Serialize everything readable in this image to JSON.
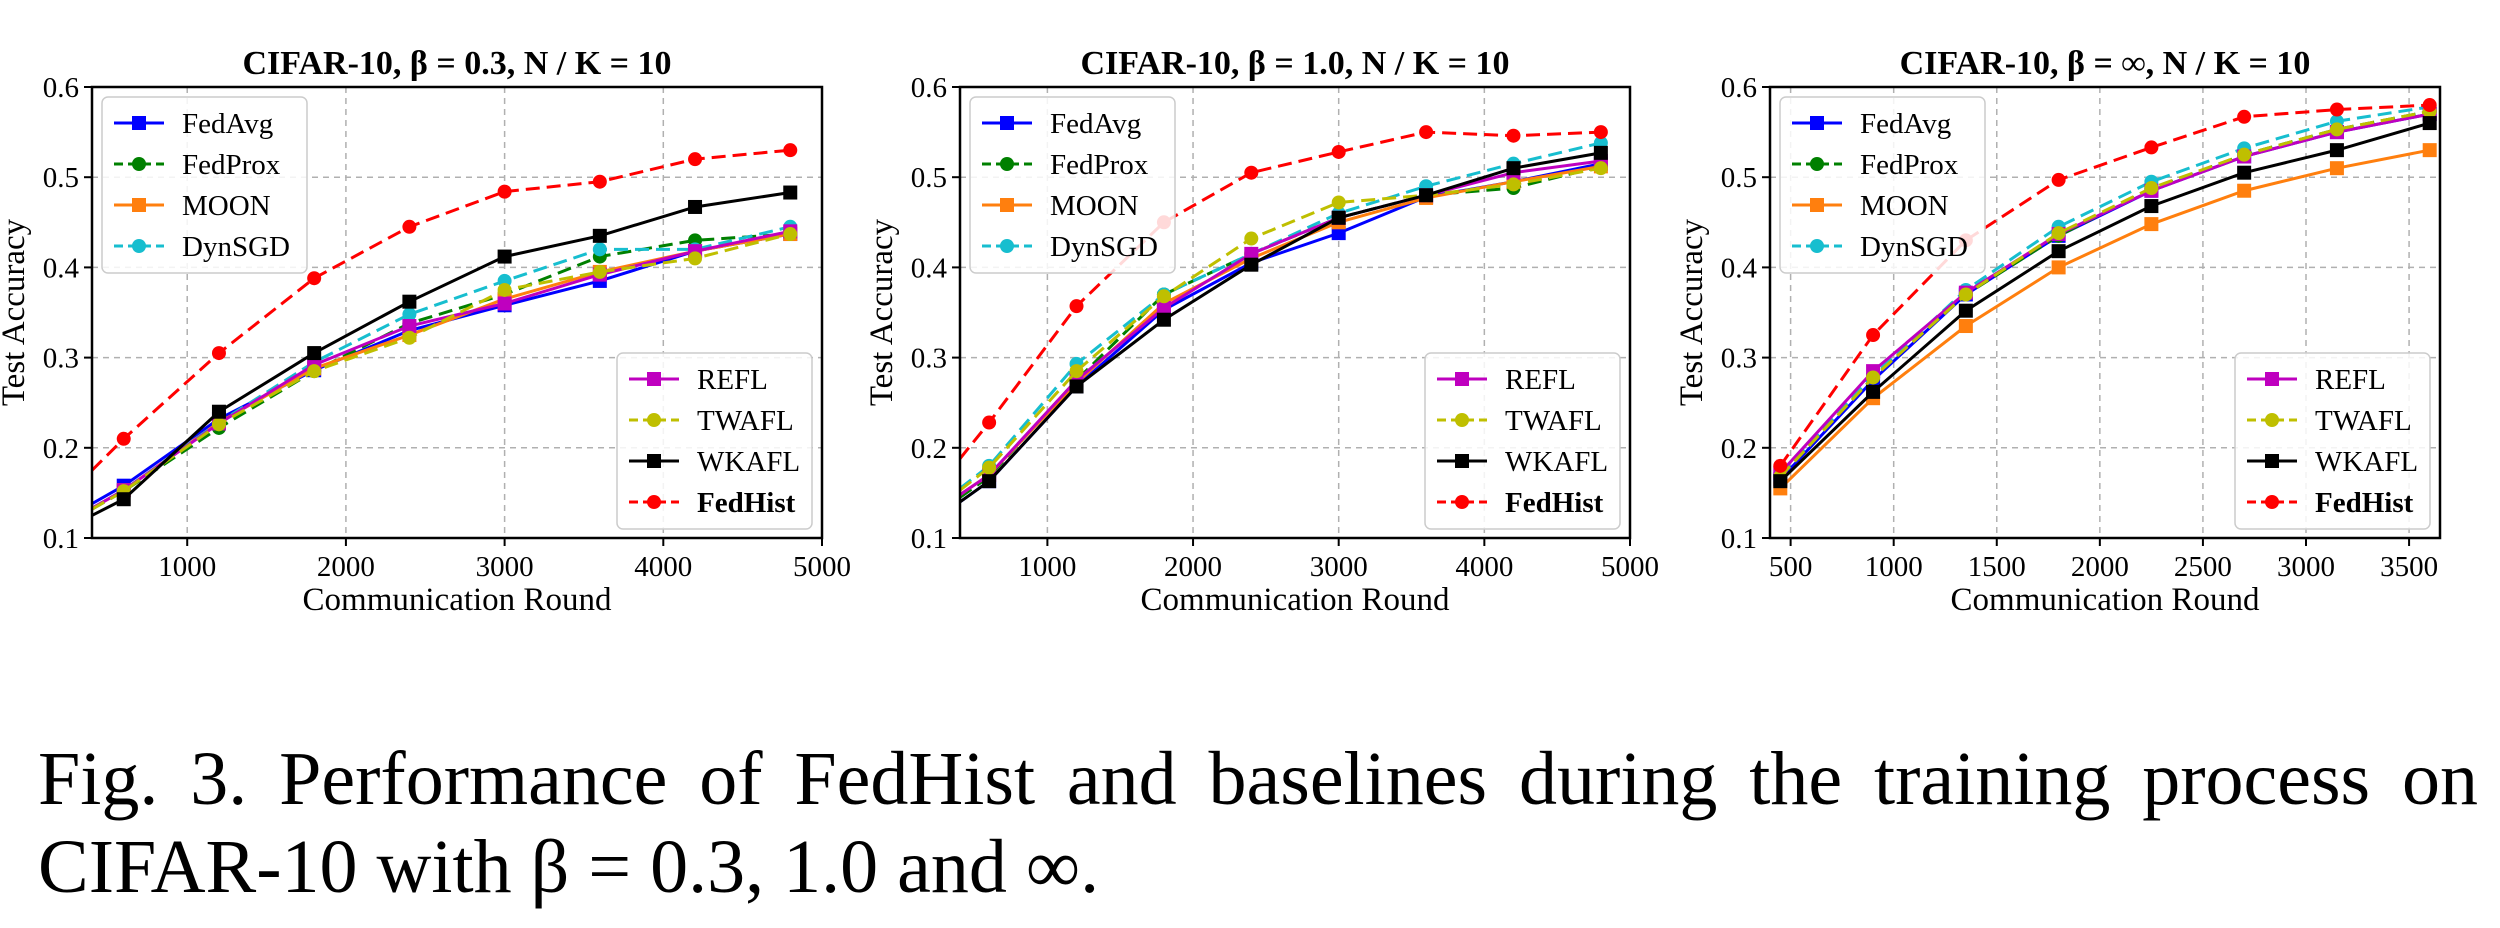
{
  "chart_data": [
    {
      "type": "line",
      "title": "CIFAR-10,  β = 0.3,  N / K = 10",
      "xlabel": "Communication Round",
      "ylabel": "Test Accuracy",
      "xlim": [
        400,
        5000
      ],
      "ylim": [
        0.1,
        0.6
      ],
      "xticks": [
        1000,
        2000,
        3000,
        4000,
        5000
      ],
      "yticks": [
        0.1,
        0.2,
        0.3,
        0.4,
        0.5,
        0.6
      ],
      "grid": true,
      "legend": [
        "upper-left",
        "lower-right"
      ],
      "x": [
        600,
        1200,
        1800,
        2400,
        3000,
        3600,
        4200,
        4800
      ],
      "series": [
        {
          "name": "FedAvg",
          "color": "#0000ff",
          "dash": "solid",
          "marker": "square",
          "values": [
            0.158,
            0.232,
            0.286,
            0.33,
            0.358,
            0.385,
            0.418,
            0.437
          ],
          "left": [
            400,
            0.138
          ]
        },
        {
          "name": "FedProx",
          "color": "#008000",
          "dash": "dashed",
          "marker": "circle",
          "values": [
            0.152,
            0.222,
            0.285,
            0.338,
            0.37,
            0.412,
            0.43,
            0.437
          ],
          "left": [
            400,
            0.132
          ]
        },
        {
          "name": "MOON",
          "color": "#ff7f0e",
          "dash": "solid",
          "marker": "square",
          "values": [
            0.153,
            0.228,
            0.288,
            0.325,
            0.365,
            0.395,
            0.418,
            0.437
          ],
          "left": [
            400,
            0.133
          ]
        },
        {
          "name": "DynSGD",
          "color": "#17becf",
          "dash": "dashed",
          "marker": "circle",
          "values": [
            0.153,
            0.228,
            0.295,
            0.348,
            0.385,
            0.42,
            0.42,
            0.445
          ],
          "left": [
            400,
            0.133
          ]
        },
        {
          "name": "REFL",
          "color": "#bf00bf",
          "dash": "solid",
          "marker": "square",
          "values": [
            0.153,
            0.227,
            0.292,
            0.335,
            0.36,
            0.392,
            0.418,
            0.44
          ],
          "left": [
            400,
            0.133
          ]
        },
        {
          "name": "TWAFL",
          "color": "#bfbf00",
          "dash": "dashed",
          "marker": "circle",
          "values": [
            0.152,
            0.226,
            0.285,
            0.322,
            0.375,
            0.395,
            0.41,
            0.437
          ],
          "left": [
            400,
            0.132
          ]
        },
        {
          "name": "WKAFL",
          "color": "#000000",
          "dash": "solid",
          "marker": "square",
          "values": [
            0.143,
            0.24,
            0.305,
            0.362,
            0.412,
            0.435,
            0.467,
            0.483
          ],
          "left": [
            400,
            0.125
          ]
        },
        {
          "name": "FedHist",
          "color": "#ff0000",
          "dash": "dashed",
          "marker": "circle",
          "values": [
            0.21,
            0.305,
            0.388,
            0.445,
            0.484,
            0.495,
            0.52,
            0.53
          ],
          "left": [
            400,
            0.175
          ]
        }
      ]
    },
    {
      "type": "line",
      "title": "CIFAR-10,  β = 1.0,  N / K = 10",
      "xlabel": "Communication Round",
      "ylabel": "Test Accuracy",
      "xlim": [
        400,
        5000
      ],
      "ylim": [
        0.1,
        0.6
      ],
      "xticks": [
        1000,
        2000,
        3000,
        4000,
        5000
      ],
      "yticks": [
        0.1,
        0.2,
        0.3,
        0.4,
        0.5,
        0.6
      ],
      "grid": true,
      "legend": [
        "upper-left",
        "lower-right"
      ],
      "x": [
        600,
        1200,
        1800,
        2400,
        3000,
        3600,
        4200,
        4800
      ],
      "series": [
        {
          "name": "FedAvg",
          "color": "#0000ff",
          "dash": "solid",
          "marker": "square",
          "values": [
            0.163,
            0.268,
            0.353,
            0.405,
            0.438,
            0.478,
            0.495,
            0.515
          ],
          "left": [
            400,
            0.14
          ]
        },
        {
          "name": "FedProx",
          "color": "#008000",
          "dash": "dashed",
          "marker": "circle",
          "values": [
            0.168,
            0.275,
            0.37,
            0.415,
            0.455,
            0.48,
            0.488,
            0.512
          ],
          "left": [
            400,
            0.145
          ]
        },
        {
          "name": "MOON",
          "color": "#ff7f0e",
          "dash": "solid",
          "marker": "square",
          "values": [
            0.17,
            0.272,
            0.36,
            0.41,
            0.45,
            0.477,
            0.495,
            0.512
          ],
          "left": [
            400,
            0.148
          ]
        },
        {
          "name": "DynSGD",
          "color": "#17becf",
          "dash": "dashed",
          "marker": "circle",
          "values": [
            0.18,
            0.293,
            0.37,
            0.415,
            0.46,
            0.49,
            0.515,
            0.538
          ],
          "left": [
            400,
            0.155
          ]
        },
        {
          "name": "REFL",
          "color": "#bf00bf",
          "dash": "solid",
          "marker": "square",
          "values": [
            0.17,
            0.275,
            0.355,
            0.415,
            0.455,
            0.48,
            0.505,
            0.518
          ],
          "left": [
            400,
            0.148
          ]
        },
        {
          "name": "TWAFL",
          "color": "#bfbf00",
          "dash": "dashed",
          "marker": "circle",
          "values": [
            0.178,
            0.285,
            0.368,
            0.432,
            0.472,
            0.48,
            0.492,
            0.51
          ],
          "left": [
            400,
            0.153
          ]
        },
        {
          "name": "WKAFL",
          "color": "#000000",
          "dash": "solid",
          "marker": "square",
          "values": [
            0.163,
            0.268,
            0.342,
            0.403,
            0.455,
            0.48,
            0.51,
            0.527
          ],
          "left": [
            400,
            0.14
          ]
        },
        {
          "name": "FedHist",
          "color": "#ff0000",
          "dash": "dashed",
          "marker": "circle",
          "values": [
            0.228,
            0.357,
            0.45,
            0.505,
            0.528,
            0.55,
            0.546,
            0.55
          ],
          "left": [
            400,
            0.188
          ]
        }
      ]
    },
    {
      "type": "line",
      "title": "CIFAR-10,  β = ∞,  N / K = 10",
      "xlabel": "Communication Round",
      "ylabel": "Test Accuracy",
      "xlim": [
        400,
        3650
      ],
      "ylim": [
        0.1,
        0.6
      ],
      "xticks": [
        500,
        1000,
        1500,
        2000,
        2500,
        3000,
        3500
      ],
      "yticks": [
        0.1,
        0.2,
        0.3,
        0.4,
        0.5,
        0.6
      ],
      "grid": true,
      "legend": [
        "upper-left",
        "lower-right"
      ],
      "x": [
        450,
        900,
        1350,
        1800,
        2250,
        2700,
        3150,
        3600
      ],
      "series": [
        {
          "name": "FedAvg",
          "color": "#0000ff",
          "dash": "solid",
          "marker": "square",
          "values": [
            0.165,
            0.275,
            0.37,
            0.435,
            0.485,
            0.523,
            0.55,
            0.57
          ]
        },
        {
          "name": "FedProx",
          "color": "#008000",
          "dash": "dashed",
          "marker": "circle",
          "values": [
            0.168,
            0.278,
            0.37,
            0.435,
            0.487,
            0.525,
            0.553,
            0.573
          ]
        },
        {
          "name": "MOON",
          "color": "#ff7f0e",
          "dash": "solid",
          "marker": "square",
          "values": [
            0.155,
            0.255,
            0.335,
            0.4,
            0.448,
            0.485,
            0.51,
            0.53
          ]
        },
        {
          "name": "DynSGD",
          "color": "#17becf",
          "dash": "dashed",
          "marker": "circle",
          "values": [
            0.17,
            0.28,
            0.375,
            0.445,
            0.495,
            0.532,
            0.562,
            0.578
          ]
        },
        {
          "name": "REFL",
          "color": "#bf00bf",
          "dash": "solid",
          "marker": "square",
          "values": [
            0.172,
            0.285,
            0.372,
            0.437,
            0.485,
            0.523,
            0.55,
            0.57
          ]
        },
        {
          "name": "TWAFL",
          "color": "#bfbf00",
          "dash": "dashed",
          "marker": "circle",
          "values": [
            0.168,
            0.278,
            0.37,
            0.438,
            0.488,
            0.525,
            0.553,
            0.573
          ]
        },
        {
          "name": "WKAFL",
          "color": "#000000",
          "dash": "solid",
          "marker": "square",
          "values": [
            0.163,
            0.262,
            0.352,
            0.418,
            0.468,
            0.505,
            0.53,
            0.56
          ]
        },
        {
          "name": "FedHist",
          "color": "#ff0000",
          "dash": "dashed",
          "marker": "circle",
          "values": [
            0.18,
            0.325,
            0.43,
            0.497,
            0.533,
            0.567,
            0.575,
            0.58
          ]
        }
      ]
    }
  ],
  "caption": "Fig. 3.  Performance of FedHist and baselines during the training process on CIFAR-10 with β = 0.3, 1.0 and ∞."
}
